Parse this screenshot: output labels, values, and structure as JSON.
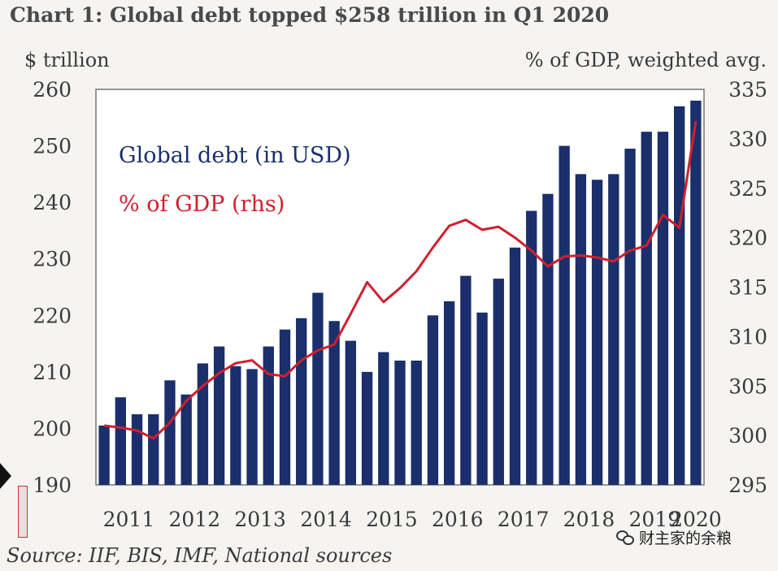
{
  "chart_data": {
    "type": "bar",
    "title": "Chart 1: Global debt topped $258 trillion in Q1 2020",
    "ylabel": "$ trillion",
    "ylabel_right": "% of GDP, weighted avg.",
    "source": "Source: IIF, BIS, IMF, National sources",
    "ylim": [
      190,
      260
    ],
    "ylim_right": [
      295,
      335
    ],
    "yticks": [
      190,
      200,
      210,
      220,
      230,
      240,
      250,
      260
    ],
    "yticks_right": [
      295,
      300,
      305,
      310,
      315,
      320,
      325,
      330,
      335
    ],
    "xticks": [
      "2011",
      "2012",
      "2013",
      "2014",
      "2015",
      "2016",
      "2017",
      "2018",
      "2019",
      "2020"
    ],
    "legend": [
      {
        "label": "Global debt (in USD)",
        "color": "#1a2f6b"
      },
      {
        "label": "% of GDP (rhs)",
        "color": "#d01f2e"
      }
    ],
    "series": [
      {
        "name": "Global debt (in USD)",
        "type": "bar",
        "axis": "left",
        "color": "#1a2f6b",
        "x": [
          "2011 Q1",
          "2011 Q2",
          "2011 Q3",
          "2011 Q4",
          "2012 Q1",
          "2012 Q2",
          "2012 Q3",
          "2012 Q4",
          "2013 Q1",
          "2013 Q2",
          "2013 Q3",
          "2013 Q4",
          "2014 Q1",
          "2014 Q2",
          "2014 Q3",
          "2014 Q4",
          "2015 Q1",
          "2015 Q2",
          "2015 Q3",
          "2015 Q4",
          "2016 Q1",
          "2016 Q2",
          "2016 Q3",
          "2016 Q4",
          "2017 Q1",
          "2017 Q2",
          "2017 Q3",
          "2017 Q4",
          "2018 Q1",
          "2018 Q2",
          "2018 Q3",
          "2018 Q4",
          "2019 Q1",
          "2019 Q2",
          "2019 Q3",
          "2019 Q4",
          "2020 Q1"
        ],
        "values": [
          200.5,
          205.5,
          202.5,
          202.5,
          208.5,
          206,
          211.5,
          214.5,
          211,
          210.5,
          214.5,
          217.5,
          219.5,
          224,
          219,
          215.5,
          210,
          213.5,
          212,
          212,
          220,
          222.5,
          227,
          220.5,
          226.5,
          232,
          238.5,
          241.5,
          250,
          245,
          244,
          245,
          249.5,
          252.5,
          252.5,
          257,
          258
        ]
      },
      {
        "name": "% of GDP (rhs)",
        "type": "line",
        "axis": "right",
        "color": "#d01f2e",
        "x": [
          "2011 Q1",
          "2011 Q2",
          "2011 Q3",
          "2011 Q4",
          "2012 Q1",
          "2012 Q2",
          "2012 Q3",
          "2012 Q4",
          "2013 Q1",
          "2013 Q2",
          "2013 Q3",
          "2013 Q4",
          "2014 Q1",
          "2014 Q2",
          "2014 Q3",
          "2014 Q4",
          "2015 Q1",
          "2015 Q2",
          "2015 Q3",
          "2015 Q4",
          "2016 Q1",
          "2016 Q2",
          "2016 Q3",
          "2016 Q4",
          "2017 Q1",
          "2017 Q2",
          "2017 Q3",
          "2017 Q4",
          "2018 Q1",
          "2018 Q2",
          "2018 Q3",
          "2018 Q4",
          "2019 Q1",
          "2019 Q2",
          "2019 Q3",
          "2019 Q4",
          "2020 Q1"
        ],
        "values": [
          301,
          300.8,
          300.5,
          299.7,
          301.3,
          303.5,
          305,
          306.3,
          307.3,
          307.6,
          306.2,
          306,
          307.6,
          308.6,
          309.2,
          312.3,
          315.5,
          313.5,
          314.9,
          316.6,
          319,
          321.2,
          321.8,
          320.8,
          321.1,
          320,
          318.7,
          317.1,
          318.1,
          318.2,
          318.0,
          317.6,
          318.7,
          319.2,
          322.3,
          321,
          331.8
        ]
      }
    ]
  },
  "watermark": {
    "icon": "wechat-icon",
    "text": "财主家的余粮"
  }
}
